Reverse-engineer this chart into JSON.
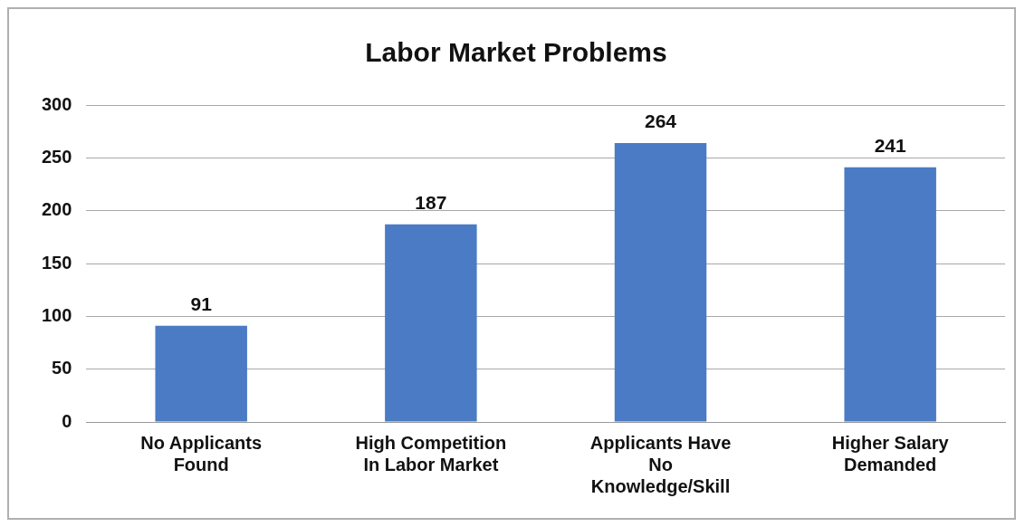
{
  "chart_data": {
    "type": "bar",
    "title": "Labor Market Problems",
    "categories": [
      "No Applicants Found",
      "High Competition In Labor Market",
      "Applicants Have No Knowledge/Skill",
      "Higher Salary Demanded"
    ],
    "values": [
      91,
      187,
      264,
      241
    ],
    "color": "#4a7bc4",
    "ylim": [
      0,
      300
    ],
    "yticks": [
      0,
      50,
      100,
      150,
      200,
      250,
      300
    ],
    "grid": "y",
    "legend": false,
    "data_labels": true
  }
}
